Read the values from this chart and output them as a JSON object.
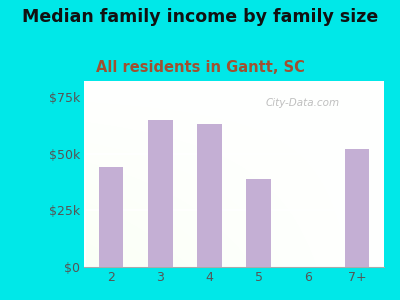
{
  "title": "Median family income by family size",
  "subtitle": "All residents in Gantt, SC",
  "categories": [
    "2",
    "3",
    "4",
    "5",
    "6",
    "7+"
  ],
  "values": [
    44000,
    65000,
    63000,
    39000,
    0,
    52000
  ],
  "bar_color": "#c4afd4",
  "title_fontsize": 12.5,
  "subtitle_fontsize": 10.5,
  "subtitle_color": "#a05030",
  "title_color": "#111111",
  "background_outer": "#00e8e8",
  "yticks": [
    0,
    25000,
    50000,
    75000
  ],
  "ytick_labels": [
    "$0",
    "$25k",
    "$50k",
    "$75k"
  ],
  "ylim": [
    0,
    82000
  ],
  "watermark": "City-Data.com",
  "tick_color": "#555555"
}
